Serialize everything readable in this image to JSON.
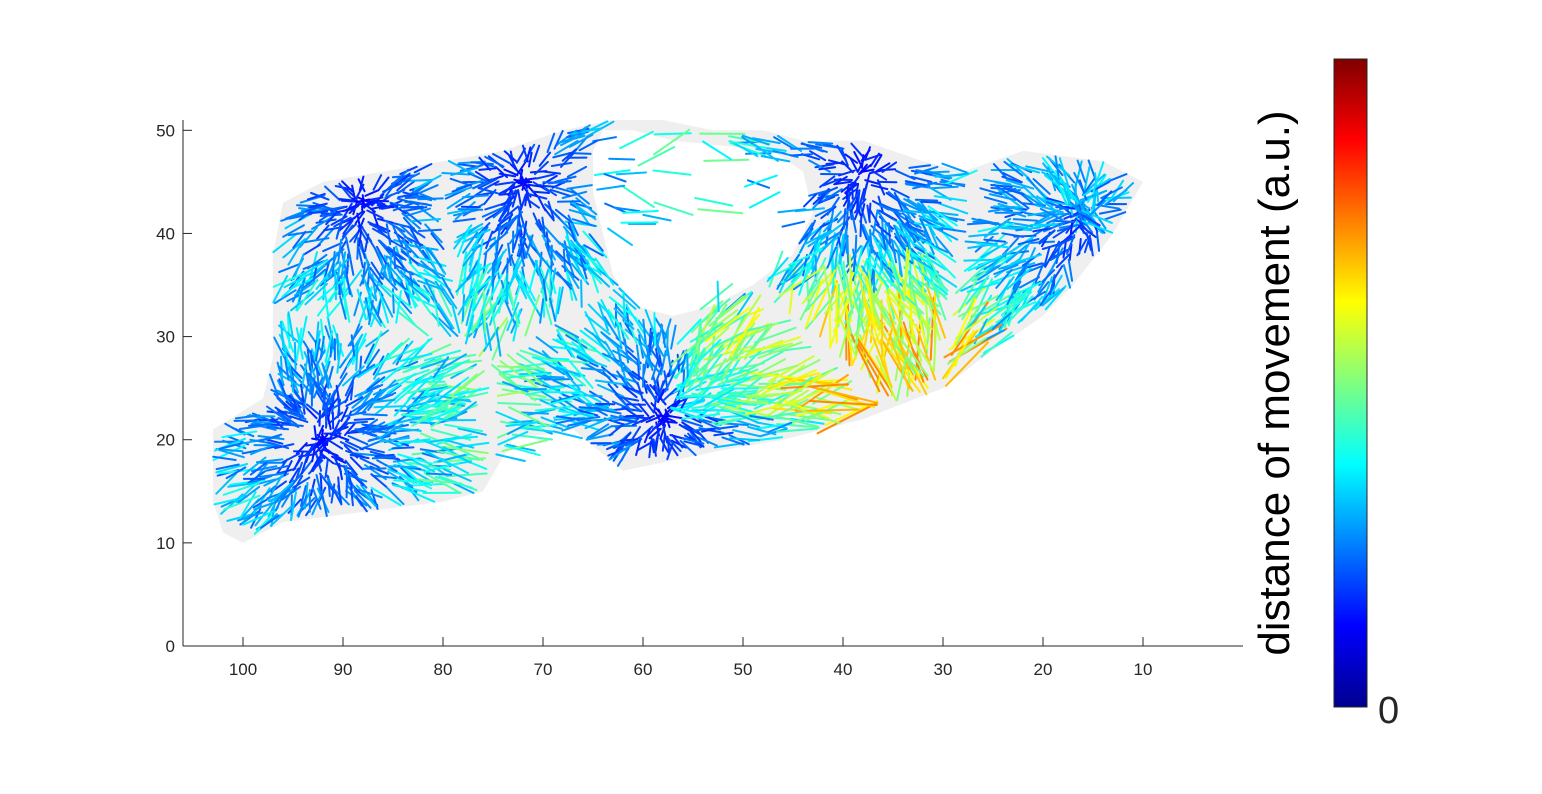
{
  "chart_data": {
    "type": "quiver",
    "title": "",
    "xlabel": "",
    "ylabel": "",
    "x_direction": "reverse",
    "xlim": [
      106,
      0
    ],
    "ylim": [
      0,
      51
    ],
    "xticks": [
      100,
      90,
      80,
      70,
      60,
      50,
      40,
      30,
      20,
      10
    ],
    "yticks": [
      0,
      10,
      20,
      30,
      40,
      50
    ],
    "grid": false,
    "background_region_color": "#efefef",
    "colormap": "jet",
    "colorbar": {
      "label": "distance of movement (a.u.)",
      "tick_labels": [
        "0"
      ],
      "placement": "right"
    },
    "field_cluster_centers": [
      {
        "x": 88,
        "y": 43
      },
      {
        "x": 72,
        "y": 45
      },
      {
        "x": 38,
        "y": 46
      },
      {
        "x": 16,
        "y": 42
      },
      {
        "x": 92,
        "y": 20
      },
      {
        "x": 58,
        "y": 22
      }
    ],
    "hole_region": {
      "x": [
        65,
        44
      ],
      "y": [
        32,
        51
      ]
    }
  }
}
